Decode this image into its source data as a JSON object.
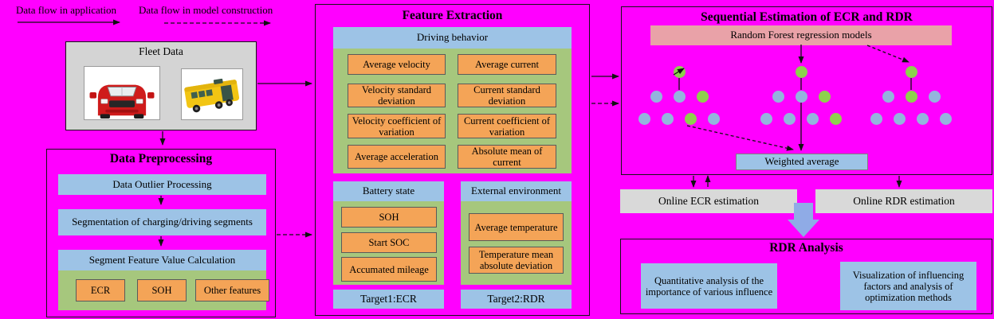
{
  "colors": {
    "background": "#ff00ff",
    "panel_blue": "#9dc3e6",
    "panel_green": "#a6c77d",
    "box_orange": "#f4a457",
    "model_pink": "#e9a2a8",
    "output_gray": "#d9d9d9",
    "flow_arrow_blue": "#8fabe6",
    "tree": {
      "green": "#8ed04e",
      "blue": "#94b4dd"
    }
  },
  "legend": {
    "application_label": "Data flow in application",
    "model_label": "Data flow in model construction"
  },
  "fleet": {
    "title": "Fleet Data",
    "icons": [
      "red-car-image",
      "yellow-bus-image"
    ]
  },
  "preprocessing": {
    "title": "Data Preprocessing",
    "steps": [
      "Data Outlier Processing",
      "Segmentation of charging/driving segments"
    ],
    "calculation": {
      "header": "Segment Feature Value Calculation",
      "features": [
        "ECR",
        "SOH",
        "Other features"
      ]
    }
  },
  "feature_extraction": {
    "title": "Feature Extraction",
    "driving": {
      "header": "Driving behavior",
      "rows": [
        [
          "Average velocity",
          "Average current"
        ],
        [
          "Velocity standard deviation",
          "Current standard deviation"
        ],
        [
          "Velocity coefficient of variation",
          "Current coefficient of variation"
        ],
        [
          "Average acceleration",
          "Absolute mean of current"
        ]
      ]
    },
    "battery": {
      "header": "Battery state",
      "items": [
        "SOH",
        "Start SOC",
        "Accumated mileage"
      ]
    },
    "external": {
      "header": "External environment",
      "items": [
        "Average temperature",
        "Temperature mean absolute deviation"
      ]
    },
    "targets": [
      "Target1:ECR",
      "Target2:RDR"
    ]
  },
  "estimation": {
    "title": "Sequential Estimation of ECR and RDR",
    "model_label": "Random Forest regression models",
    "weighted_label": "Weighted average",
    "outputs": [
      "Online ECR estimation",
      "Online RDR estimation"
    ],
    "trees": [
      {
        "root": "green",
        "middle": [
          "blue",
          "blue",
          "green"
        ],
        "bottom": [
          "blue",
          "blue",
          "green",
          "blue"
        ]
      },
      {
        "root": "green",
        "middle": [
          "blue",
          "blue",
          "green"
        ],
        "bottom": [
          "blue",
          "blue",
          "blue",
          "green"
        ]
      },
      {
        "root": "green",
        "middle": [
          "blue",
          "green",
          "blue"
        ],
        "bottom": [
          "blue",
          "blue",
          "blue",
          "blue"
        ]
      }
    ]
  },
  "analysis": {
    "title": "RDR Analysis",
    "left": "Quantitative analysis of the importance of various influence",
    "right": "Visualization of influencing factors and analysis of optimization methods"
  }
}
